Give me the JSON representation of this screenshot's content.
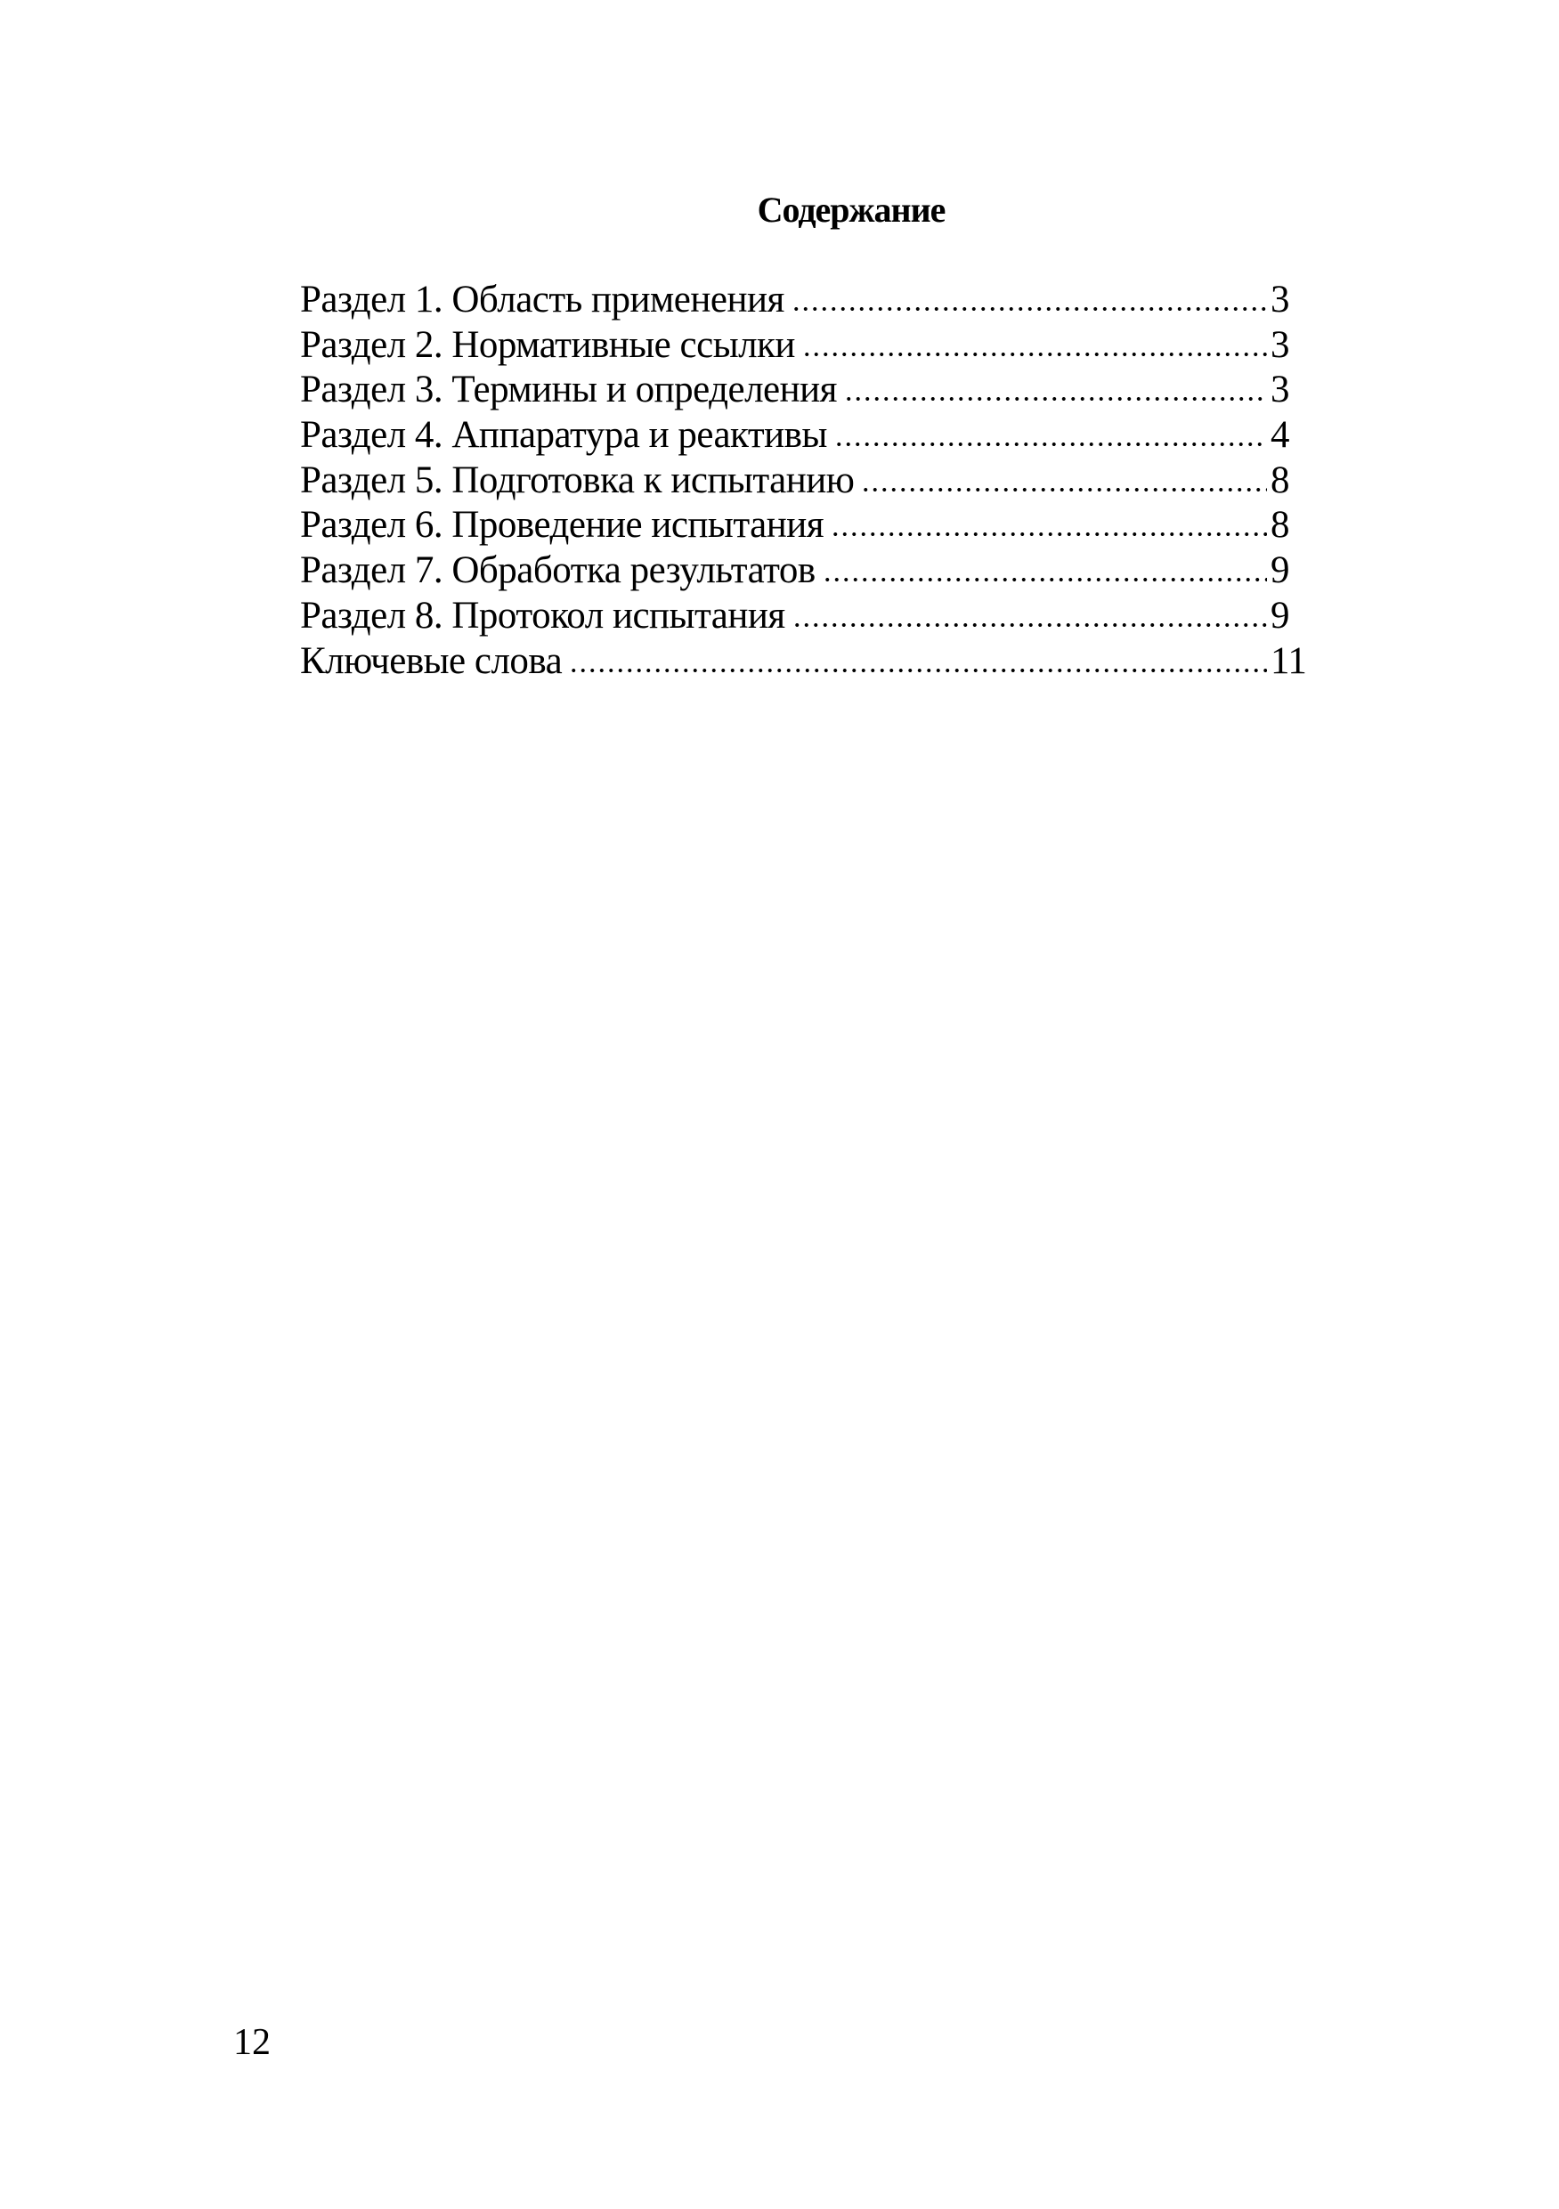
{
  "title": "Содержание",
  "toc": [
    {
      "label": "Раздел 1. Область применения",
      "page": "3"
    },
    {
      "label": "Раздел 2. Нормативные ссылки",
      "page": "3"
    },
    {
      "label": "Раздел 3. Термины и определения",
      "page": "3"
    },
    {
      "label": "Раздел 4. Аппаратура и реактивы",
      "page": "4"
    },
    {
      "label": "Раздел 5. Подготовка к испытанию",
      "page": "8"
    },
    {
      "label": "Раздел 6. Проведение испытания",
      "page": "8"
    },
    {
      "label": "Раздел 7. Обработка результатов",
      "page": "9"
    },
    {
      "label": "Раздел 8. Протокол испытания",
      "page": "9"
    },
    {
      "label": "Ключевые слова",
      "page": "11"
    }
  ],
  "page_number": "12"
}
